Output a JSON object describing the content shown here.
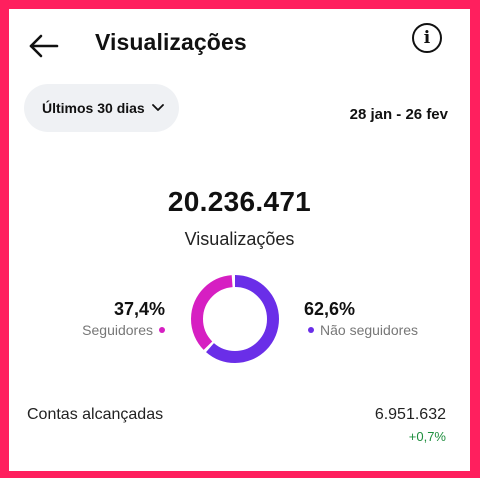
{
  "header": {
    "title": "Visualizações",
    "back_icon": "arrow-left-icon",
    "info_icon": "info-icon"
  },
  "filter": {
    "range_label": "Últimos 30 dias",
    "dropdown_icon": "chevron-down-icon",
    "date_range": "28 jan - 26 fev"
  },
  "summary": {
    "total": "20.236.471",
    "total_label": "Visualizações"
  },
  "breakdown": {
    "followers": {
      "percent_text": "37,4%",
      "label": "Seguidores",
      "value": 37.4,
      "color": "#d61fc2"
    },
    "non_followers": {
      "percent_text": "62,6%",
      "label": "Não seguidores",
      "value": 62.6,
      "color": "#6a2ee8"
    }
  },
  "reach": {
    "label": "Contas alcançadas",
    "value": "6.951.632",
    "delta": "+0,7%",
    "delta_color": "#1e8e3e"
  },
  "colors": {
    "border": "#ff1f5e",
    "pill_bg": "#eff1f4"
  }
}
